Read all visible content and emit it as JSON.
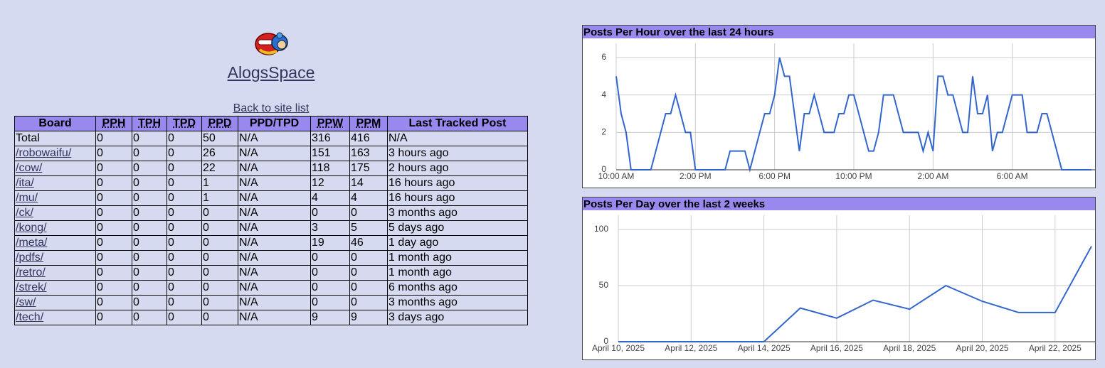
{
  "header": {
    "title": "AlogsSpace",
    "back_link": "Back to site list"
  },
  "table": {
    "columns": [
      "Board",
      "PPH",
      "TPH",
      "TPD",
      "PPD",
      "PPD/TPD",
      "PPW",
      "PPM",
      "Last Tracked Post"
    ],
    "rows": [
      [
        "Total",
        0,
        0,
        0,
        50,
        "N/A",
        316,
        416,
        "N/A"
      ],
      [
        "/robowaifu/",
        0,
        0,
        0,
        26,
        "N/A",
        151,
        163,
        "3 hours ago"
      ],
      [
        "/cow/",
        0,
        0,
        0,
        22,
        "N/A",
        118,
        175,
        "2 hours ago"
      ],
      [
        "/ita/",
        0,
        0,
        0,
        1,
        "N/A",
        12,
        14,
        "16 hours ago"
      ],
      [
        "/mu/",
        0,
        0,
        0,
        1,
        "N/A",
        4,
        4,
        "16 hours ago"
      ],
      [
        "/ck/",
        0,
        0,
        0,
        0,
        "N/A",
        0,
        0,
        "3 months ago"
      ],
      [
        "/kong/",
        0,
        0,
        0,
        0,
        "N/A",
        3,
        5,
        "5 days ago"
      ],
      [
        "/meta/",
        0,
        0,
        0,
        0,
        "N/A",
        19,
        46,
        "1 day ago"
      ],
      [
        "/pdfs/",
        0,
        0,
        0,
        0,
        "N/A",
        0,
        0,
        "1 month ago"
      ],
      [
        "/retro/",
        0,
        0,
        0,
        0,
        "N/A",
        0,
        0,
        "1 month ago"
      ],
      [
        "/strek/",
        0,
        0,
        0,
        0,
        "N/A",
        0,
        0,
        "6 months ago"
      ],
      [
        "/sw/",
        0,
        0,
        0,
        0,
        "N/A",
        0,
        0,
        "3 months ago"
      ],
      [
        "/tech/",
        0,
        0,
        0,
        0,
        "N/A",
        9,
        9,
        "3 days ago"
      ]
    ]
  },
  "chart_data": [
    {
      "type": "line",
      "title": "Posts Per Hour over the last 24 hours",
      "x": [
        0,
        0.25,
        0.5,
        0.75,
        1.75,
        2.5,
        2.75,
        3,
        3.5,
        3.75,
        4,
        5.5,
        5.75,
        6.5,
        6.75,
        7.5,
        7.75,
        8,
        8.25,
        8.5,
        8.75,
        9.25,
        9.5,
        9.75,
        10,
        10.5,
        11,
        11.25,
        11.5,
        11.75,
        12,
        12.75,
        13,
        13.25,
        13.5,
        14,
        14.5,
        15.25,
        15.5,
        15.75,
        16,
        16.25,
        16.5,
        16.75,
        17,
        17.5,
        17.75,
        18,
        18.25,
        18.5,
        18.75,
        19,
        19.25,
        19.5,
        20,
        20.5,
        20.75,
        21.25,
        21.5,
        21.75,
        22.5,
        24
      ],
      "values": [
        5,
        3,
        2,
        0,
        0,
        3,
        3,
        4,
        2,
        2,
        0,
        0,
        1,
        1,
        0,
        3,
        3,
        4,
        6,
        5,
        5,
        1,
        3,
        3,
        4,
        2,
        2,
        3,
        3,
        4,
        4,
        1,
        1,
        2,
        4,
        4,
        2,
        2,
        1,
        2,
        1,
        5,
        5,
        4,
        4,
        2,
        2,
        5,
        3,
        3,
        4,
        1,
        2,
        2,
        4,
        4,
        2,
        2,
        3,
        3,
        0,
        0
      ],
      "color": "#3366cc",
      "xlim": [
        0,
        24
      ],
      "xticks": [
        {
          "value": 0,
          "label": "10:00 AM"
        },
        {
          "value": 4,
          "label": "2:00 PM"
        },
        {
          "value": 8,
          "label": "6:00 PM"
        },
        {
          "value": 12,
          "label": "10:00 PM"
        },
        {
          "value": 16,
          "label": "2:00 AM"
        },
        {
          "value": 20,
          "label": "6:00 AM"
        }
      ],
      "ylim": [
        0,
        6
      ],
      "yticks": [
        0,
        2,
        4,
        6
      ],
      "grid": true
    },
    {
      "type": "line",
      "title": "Posts Per Day over the last 2 weeks",
      "categories": [
        "April 10, 2025",
        null,
        "April 12, 2025",
        null,
        "April 14, 2025",
        null,
        "April 16, 2025",
        null,
        "April 18, 2025",
        null,
        "April 20, 2025",
        null,
        "April 22, 2025",
        null
      ],
      "values": [
        0,
        0,
        0,
        0,
        0,
        30,
        21,
        37,
        29,
        50,
        36,
        26,
        26,
        85
      ],
      "color": "#3366cc",
      "ylim": [
        0,
        100
      ],
      "yticks": [
        0,
        50,
        100
      ],
      "grid": true
    }
  ]
}
